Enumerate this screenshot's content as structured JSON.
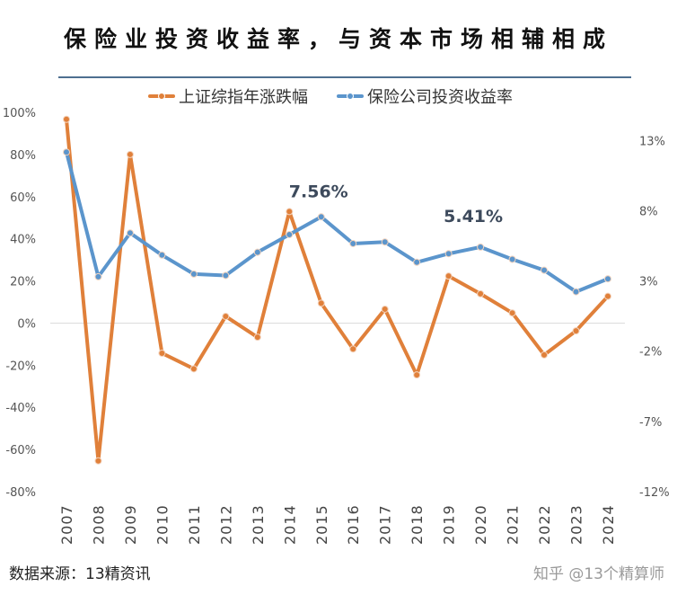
{
  "header": {
    "title": "保险业投资收益率，与资本市场相辅相成"
  },
  "footer": {
    "source": "数据来源：13精资讯",
    "platform_watermark": "知乎 @13个精算师"
  },
  "watermark": "13个精算师",
  "chart_data": {
    "type": "line",
    "title": "保险业投资收益率，与资本市场相辅相成",
    "legend_position": "top",
    "grid": false,
    "categories": [
      "2007",
      "2008",
      "2009",
      "2010",
      "2011",
      "2012",
      "2013",
      "2014",
      "2015",
      "2016",
      "2017",
      "2018",
      "2019",
      "2020",
      "2021",
      "2022",
      "2023",
      "2024"
    ],
    "series": [
      {
        "name": "上证综指年涨跌幅",
        "axis": "left",
        "color": "#e0803a",
        "values": [
          96.7,
          -65.4,
          80.0,
          -14.3,
          -21.7,
          3.2,
          -6.7,
          52.9,
          9.4,
          -12.3,
          6.6,
          -24.6,
          22.3,
          13.9,
          4.8,
          -15.1,
          -3.7,
          12.7
        ]
      },
      {
        "name": "保险公司投资收益率",
        "axis": "right",
        "color": "#5b95cc",
        "values": [
          12.17,
          3.3,
          6.41,
          4.84,
          3.49,
          3.39,
          5.04,
          6.3,
          7.56,
          5.66,
          5.77,
          4.33,
          4.94,
          5.41,
          4.54,
          3.76,
          2.23,
          3.15
        ]
      }
    ],
    "left_axis": {
      "ticks": [
        "100%",
        "80%",
        "60%",
        "40%",
        "20%",
        "0%",
        "-20%",
        "-40%",
        "-60%",
        "-80%"
      ],
      "ylim": [
        -80,
        100
      ]
    },
    "right_axis": {
      "ticks": [
        "13%",
        "8%",
        "3%",
        "-2%",
        "-7%",
        "-12%"
      ],
      "ylim": [
        -12,
        15
      ]
    },
    "annotations": [
      {
        "text": "7.56%",
        "category": "2015",
        "series": "保险公司投资收益率"
      },
      {
        "text": "5.41%",
        "category": "2020",
        "series": "保险公司投资收益率"
      }
    ]
  }
}
